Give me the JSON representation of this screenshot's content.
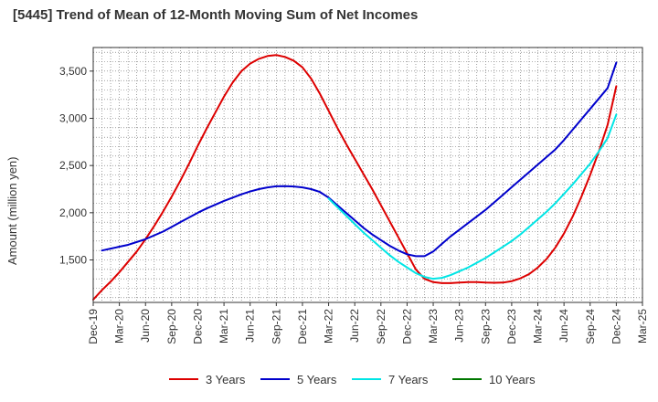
{
  "chart_data": {
    "type": "line",
    "title": "[5445]  Trend of Mean of 12-Month Moving Sum of Net Incomes",
    "xlabel": "",
    "ylabel": "Amount (million yen)",
    "ylim": [
      1050,
      3750
    ],
    "yticks": [
      1500,
      2000,
      2500,
      3000,
      3500
    ],
    "ytick_labels": [
      "1,500",
      "2,000",
      "2,500",
      "3,000",
      "3,500"
    ],
    "x_start": "Dec-19",
    "x_end": "Mar-25",
    "xtick_labels": [
      "Dec-19",
      "Mar-20",
      "Jun-20",
      "Sep-20",
      "Dec-20",
      "Mar-21",
      "Jun-21",
      "Sep-21",
      "Dec-21",
      "Mar-22",
      "Jun-22",
      "Sep-22",
      "Dec-22",
      "Mar-23",
      "Jun-23",
      "Sep-23",
      "Dec-23",
      "Mar-24",
      "Jun-24",
      "Sep-24",
      "Dec-24",
      "Mar-25"
    ],
    "grid": true,
    "legend_position": "bottom",
    "series": [
      {
        "name": "3 Years",
        "color": "#dd0000",
        "points": [
          [
            "Dec-19",
            1080
          ],
          [
            "Jan-20",
            1180
          ],
          [
            "Feb-20",
            1270
          ],
          [
            "Mar-20",
            1370
          ],
          [
            "Apr-20",
            1480
          ],
          [
            "May-20",
            1590
          ],
          [
            "Jun-20",
            1720
          ],
          [
            "Jul-20",
            1860
          ],
          [
            "Aug-20",
            2010
          ],
          [
            "Sep-20",
            2170
          ],
          [
            "Oct-20",
            2340
          ],
          [
            "Nov-20",
            2520
          ],
          [
            "Dec-20",
            2710
          ],
          [
            "Jan-21",
            2890
          ],
          [
            "Feb-21",
            3060
          ],
          [
            "Mar-21",
            3230
          ],
          [
            "Apr-21",
            3380
          ],
          [
            "May-21",
            3500
          ],
          [
            "Jun-21",
            3580
          ],
          [
            "Jul-21",
            3630
          ],
          [
            "Aug-21",
            3660
          ],
          [
            "Sep-21",
            3670
          ],
          [
            "Oct-21",
            3650
          ],
          [
            "Nov-21",
            3610
          ],
          [
            "Dec-21",
            3540
          ],
          [
            "Jan-22",
            3420
          ],
          [
            "Feb-22",
            3260
          ],
          [
            "Mar-22",
            3080
          ],
          [
            "Apr-22",
            2900
          ],
          [
            "May-22",
            2730
          ],
          [
            "Jun-22",
            2570
          ],
          [
            "Jul-22",
            2410
          ],
          [
            "Aug-22",
            2250
          ],
          [
            "Sep-22",
            2080
          ],
          [
            "Oct-22",
            1910
          ],
          [
            "Nov-22",
            1740
          ],
          [
            "Dec-22",
            1570
          ],
          [
            "Jan-23",
            1400
          ],
          [
            "Feb-23",
            1300
          ],
          [
            "Mar-23",
            1265
          ],
          [
            "Apr-23",
            1255
          ],
          [
            "May-23",
            1255
          ],
          [
            "Jun-23",
            1260
          ],
          [
            "Jul-23",
            1265
          ],
          [
            "Aug-23",
            1265
          ],
          [
            "Sep-23",
            1260
          ],
          [
            "Oct-23",
            1258
          ],
          [
            "Nov-23",
            1260
          ],
          [
            "Dec-23",
            1275
          ],
          [
            "Jan-24",
            1305
          ],
          [
            "Feb-24",
            1350
          ],
          [
            "Mar-24",
            1420
          ],
          [
            "Apr-24",
            1510
          ],
          [
            "May-24",
            1630
          ],
          [
            "Jun-24",
            1780
          ],
          [
            "Jul-24",
            1960
          ],
          [
            "Aug-24",
            2170
          ],
          [
            "Sep-24",
            2400
          ],
          [
            "Oct-24",
            2650
          ],
          [
            "Nov-24",
            2930
          ],
          [
            "Dec-24",
            3340
          ]
        ]
      },
      {
        "name": "5 Years",
        "color": "#0000cc",
        "points": [
          [
            "Jan-20",
            1600
          ],
          [
            "Feb-20",
            1620
          ],
          [
            "Mar-20",
            1640
          ],
          [
            "Apr-20",
            1660
          ],
          [
            "May-20",
            1690
          ],
          [
            "Jun-20",
            1720
          ],
          [
            "Jul-20",
            1760
          ],
          [
            "Aug-20",
            1800
          ],
          [
            "Sep-20",
            1850
          ],
          [
            "Oct-20",
            1900
          ],
          [
            "Nov-20",
            1950
          ],
          [
            "Dec-20",
            2000
          ],
          [
            "Jan-21",
            2045
          ],
          [
            "Feb-21",
            2085
          ],
          [
            "Mar-21",
            2125
          ],
          [
            "Apr-21",
            2160
          ],
          [
            "May-21",
            2195
          ],
          [
            "Jun-21",
            2225
          ],
          [
            "Jul-21",
            2250
          ],
          [
            "Aug-21",
            2268
          ],
          [
            "Sep-21",
            2280
          ],
          [
            "Oct-21",
            2282
          ],
          [
            "Nov-21",
            2278
          ],
          [
            "Dec-21",
            2268
          ],
          [
            "Jan-22",
            2250
          ],
          [
            "Feb-22",
            2220
          ],
          [
            "Mar-22",
            2160
          ],
          [
            "Apr-22",
            2080
          ],
          [
            "May-22",
            2000
          ],
          [
            "Jun-22",
            1920
          ],
          [
            "Jul-22",
            1840
          ],
          [
            "Aug-22",
            1770
          ],
          [
            "Sep-22",
            1710
          ],
          [
            "Oct-22",
            1650
          ],
          [
            "Nov-22",
            1600
          ],
          [
            "Dec-22",
            1560
          ],
          [
            "Jan-23",
            1540
          ],
          [
            "Feb-23",
            1540
          ],
          [
            "Mar-23",
            1590
          ],
          [
            "Apr-23",
            1670
          ],
          [
            "May-23",
            1750
          ],
          [
            "Jun-23",
            1820
          ],
          [
            "Jul-23",
            1890
          ],
          [
            "Aug-23",
            1960
          ],
          [
            "Sep-23",
            2030
          ],
          [
            "Oct-23",
            2110
          ],
          [
            "Nov-23",
            2190
          ],
          [
            "Dec-23",
            2270
          ],
          [
            "Jan-24",
            2350
          ],
          [
            "Feb-24",
            2430
          ],
          [
            "Mar-24",
            2510
          ],
          [
            "Apr-24",
            2590
          ],
          [
            "May-24",
            2670
          ],
          [
            "Jun-24",
            2770
          ],
          [
            "Jul-24",
            2880
          ],
          [
            "Aug-24",
            2990
          ],
          [
            "Sep-24",
            3100
          ],
          [
            "Oct-24",
            3210
          ],
          [
            "Nov-24",
            3320
          ],
          [
            "Dec-24",
            3590
          ]
        ]
      },
      {
        "name": "7 Years",
        "color": "#00e5e5",
        "points": [
          [
            "Mar-22",
            2150
          ],
          [
            "Apr-22",
            2060
          ],
          [
            "May-22",
            1970
          ],
          [
            "Jun-22",
            1880
          ],
          [
            "Jul-22",
            1790
          ],
          [
            "Aug-22",
            1710
          ],
          [
            "Sep-22",
            1630
          ],
          [
            "Oct-22",
            1550
          ],
          [
            "Nov-22",
            1480
          ],
          [
            "Dec-22",
            1420
          ],
          [
            "Jan-23",
            1360
          ],
          [
            "Feb-23",
            1320
          ],
          [
            "Mar-23",
            1300
          ],
          [
            "Apr-23",
            1310
          ],
          [
            "May-23",
            1340
          ],
          [
            "Jun-23",
            1380
          ],
          [
            "Jul-23",
            1420
          ],
          [
            "Aug-23",
            1470
          ],
          [
            "Sep-23",
            1520
          ],
          [
            "Oct-23",
            1580
          ],
          [
            "Nov-23",
            1640
          ],
          [
            "Dec-23",
            1700
          ],
          [
            "Jan-24",
            1770
          ],
          [
            "Feb-24",
            1850
          ],
          [
            "Mar-24",
            1930
          ],
          [
            "Apr-24",
            2010
          ],
          [
            "May-24",
            2100
          ],
          [
            "Jun-24",
            2200
          ],
          [
            "Jul-24",
            2300
          ],
          [
            "Aug-24",
            2410
          ],
          [
            "Sep-24",
            2520
          ],
          [
            "Oct-24",
            2650
          ],
          [
            "Nov-24",
            2790
          ],
          [
            "Dec-24",
            3040
          ]
        ]
      },
      {
        "name": "10 Years",
        "color": "#007700",
        "points": []
      }
    ]
  }
}
